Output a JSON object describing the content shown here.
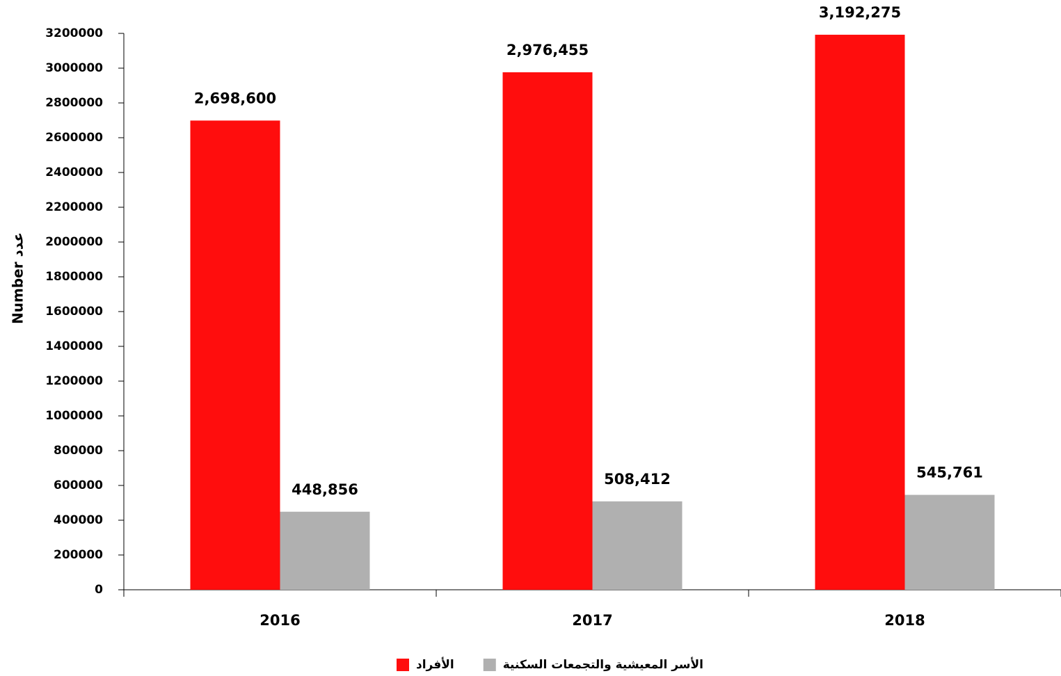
{
  "chart_data": {
    "type": "bar",
    "y_label": "Number عدد",
    "categories": [
      "2016",
      "2017",
      "2018"
    ],
    "series": [
      {
        "name": "الأفراد",
        "color": "#ff0d0d",
        "values": [
          2698600,
          2976455,
          3192275
        ],
        "value_labels": [
          "2,698,600",
          "2,976,455",
          "3,192,275"
        ]
      },
      {
        "name": "الأسر المعيشية والتجمعات السكنية",
        "color": "#b0b0b0",
        "values": [
          448856,
          508412,
          545761
        ],
        "value_labels": [
          "448,856",
          "508,412",
          "545,761"
        ]
      }
    ],
    "ylim": [
      0,
      3200000
    ],
    "yticks": [
      0,
      200000,
      400000,
      600000,
      800000,
      1000000,
      1200000,
      1400000,
      1600000,
      1800000,
      2000000,
      2200000,
      2400000,
      2600000,
      2800000,
      3000000,
      3200000
    ],
    "grid": false,
    "legend": "bottom"
  }
}
